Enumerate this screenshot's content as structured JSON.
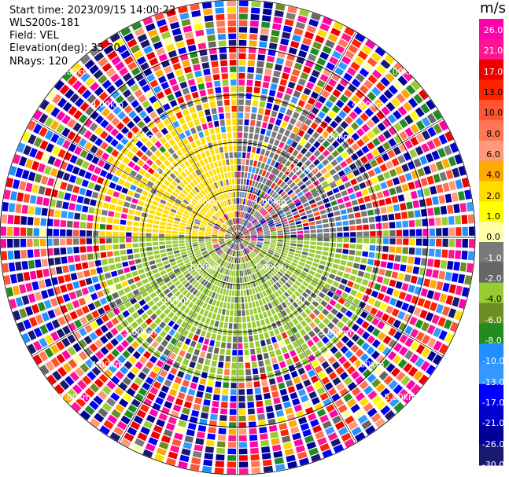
{
  "header": {
    "start_time": "Start time: 2023/09/15 14:00:22",
    "instrument": "WLS200s-181",
    "field": "Field: VEL",
    "elevation": "Elevation(deg): 35.30",
    "nrays": "NRays: 120"
  },
  "chart_data": {
    "type": "heatmap",
    "projection": "polar-ppi",
    "field": "VEL",
    "unit": "m/s",
    "nrays": 120,
    "max_range_km": 5.0,
    "range_rings_km": [
      1,
      2,
      3,
      4,
      5
    ],
    "range_ring_labels": [
      "1.00km",
      "2.00km",
      "3.00km",
      "4.00km",
      "5.00km"
    ],
    "spokes_deg": [
      0,
      30,
      60,
      90,
      120,
      150,
      180,
      210,
      240,
      270,
      300,
      330
    ],
    "colorbar": {
      "ticks": [
        "26.0",
        "21.0",
        "17.0",
        "13.0",
        "10.0",
        "8.0",
        "6.0",
        "4.0",
        "2.0",
        "1.0",
        "0.0",
        "-1.0",
        "-2.0",
        "-4.0",
        "-6.0",
        "-8.0",
        "-10.0",
        "-13.0",
        "-17.0",
        "-21.0",
        "-26.0",
        "-30.0"
      ],
      "bins": [
        {
          "from": 26,
          "to": 30,
          "color": "#ff00aa"
        },
        {
          "from": 21,
          "to": 26,
          "color": "#ff1493"
        },
        {
          "from": 17,
          "to": 21,
          "color": "#ee0000"
        },
        {
          "from": 13,
          "to": 17,
          "color": "#ff2200"
        },
        {
          "from": 10,
          "to": 13,
          "color": "#ff5533"
        },
        {
          "from": 8,
          "to": 10,
          "color": "#ff7755"
        },
        {
          "from": 6,
          "to": 8,
          "color": "#ff9977"
        },
        {
          "from": 4,
          "to": 6,
          "color": "#ffaa00"
        },
        {
          "from": 2,
          "to": 4,
          "color": "#ffdd00"
        },
        {
          "from": 1,
          "to": 2,
          "color": "#ffff00"
        },
        {
          "from": 0,
          "to": 1,
          "color": "#ffffaa"
        },
        {
          "from": -1,
          "to": 0,
          "color": "#7a7a7a"
        },
        {
          "from": -2,
          "to": -1,
          "color": "#666666"
        },
        {
          "from": -4,
          "to": -2,
          "color": "#99cc33"
        },
        {
          "from": -6,
          "to": -4,
          "color": "#6b8e23"
        },
        {
          "from": -8,
          "to": -6,
          "color": "#228b22"
        },
        {
          "from": -10,
          "to": -8,
          "color": "#1e90ff"
        },
        {
          "from": -13,
          "to": -10,
          "color": "#3399ff"
        },
        {
          "from": -17,
          "to": -13,
          "color": "#0000ff"
        },
        {
          "from": -21,
          "to": -17,
          "color": "#0000cc"
        },
        {
          "from": -26,
          "to": -21,
          "color": "#000099"
        },
        {
          "from": -30,
          "to": -26,
          "color": "#191970"
        }
      ]
    },
    "velocity_structure": {
      "noise_beyond_km": 3.0,
      "positive_sector_deg": [
        270,
        360
      ],
      "negative_sector_deg": [
        90,
        270
      ],
      "positive_value": 2.0,
      "negative_value": -3.0,
      "near_zero_value": -0.5
    }
  }
}
